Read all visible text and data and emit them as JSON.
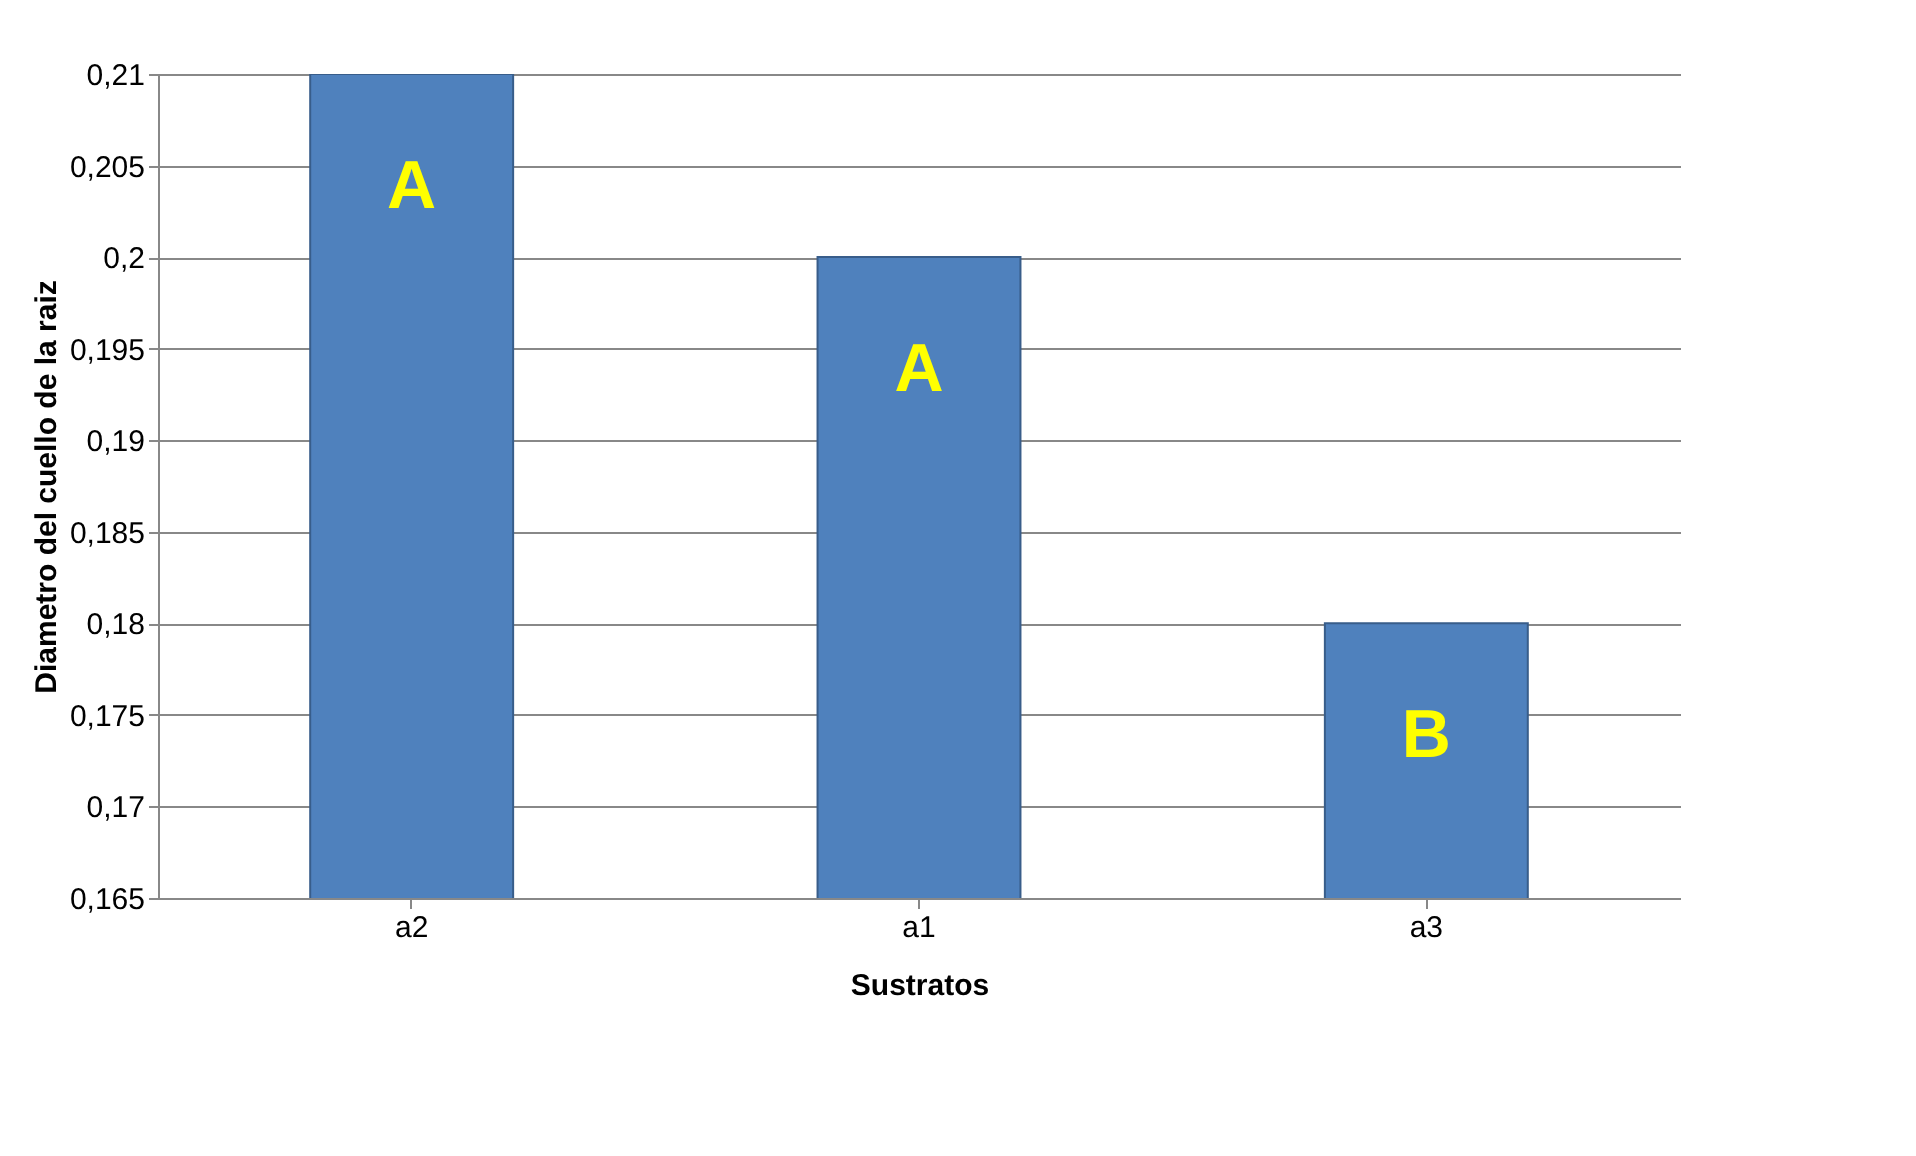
{
  "chart_data": {
    "type": "bar",
    "xlabel": "Sustratos",
    "ylabel": "Diametro del cuello de la raiz",
    "categories": [
      "a2",
      "a1",
      "a3"
    ],
    "values": [
      0.21,
      0.2,
      0.18
    ],
    "color": "#4f81bd",
    "ylim": [
      0.165,
      0.21
    ],
    "yticks": [
      {
        "value": 0.165,
        "label": "0,165"
      },
      {
        "value": 0.17,
        "label": "0,17"
      },
      {
        "value": 0.175,
        "label": "0,175"
      },
      {
        "value": 0.18,
        "label": "0,18"
      },
      {
        "value": 0.185,
        "label": "0,185"
      },
      {
        "value": 0.19,
        "label": "0,19"
      },
      {
        "value": 0.195,
        "label": "0,195"
      },
      {
        "value": 0.2,
        "label": "0,2"
      },
      {
        "value": 0.205,
        "label": "0,205"
      },
      {
        "value": 0.21,
        "label": "0,21"
      }
    ],
    "grid": "y",
    "annotations": [
      "A",
      "A",
      "B"
    ]
  }
}
